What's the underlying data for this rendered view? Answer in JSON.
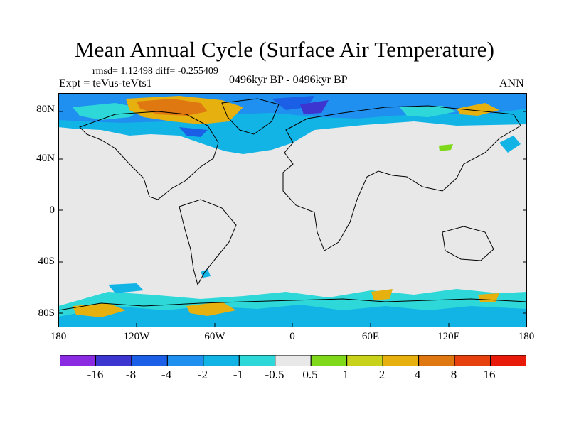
{
  "header": {
    "title": "Mean Annual Cycle (Surface Air Temperature)",
    "stats": "rmsd= 1.12498  diff= -0.255409",
    "expt": "Expt = teVus-teVts1",
    "period": "0496kyr BP - 0496kyr BP",
    "season": "ANN"
  },
  "axes": {
    "lat_labels": [
      "80N",
      "40N",
      "0",
      "40S",
      "80S"
    ],
    "lon_labels": [
      "180",
      "120W",
      "60W",
      "0",
      "60E",
      "120E",
      "180"
    ]
  },
  "legend": {
    "labels": [
      "-16",
      "-8",
      "-4",
      "-2",
      "-1",
      "-0.5",
      "0.5",
      "1",
      "2",
      "4",
      "8",
      "16"
    ],
    "colors": [
      "#8a2be2",
      "#3d35d0",
      "#1a5fe6",
      "#1f90f0",
      "#12b4e6",
      "#2ed8d8",
      "#e8e8e8",
      "#7fd91a",
      "#c8d21a",
      "#e6b00f",
      "#e07812",
      "#e5400e",
      "#e81a0a"
    ]
  },
  "map": {
    "background_color": "#e8e8e8",
    "coast_color": "#000000"
  }
}
